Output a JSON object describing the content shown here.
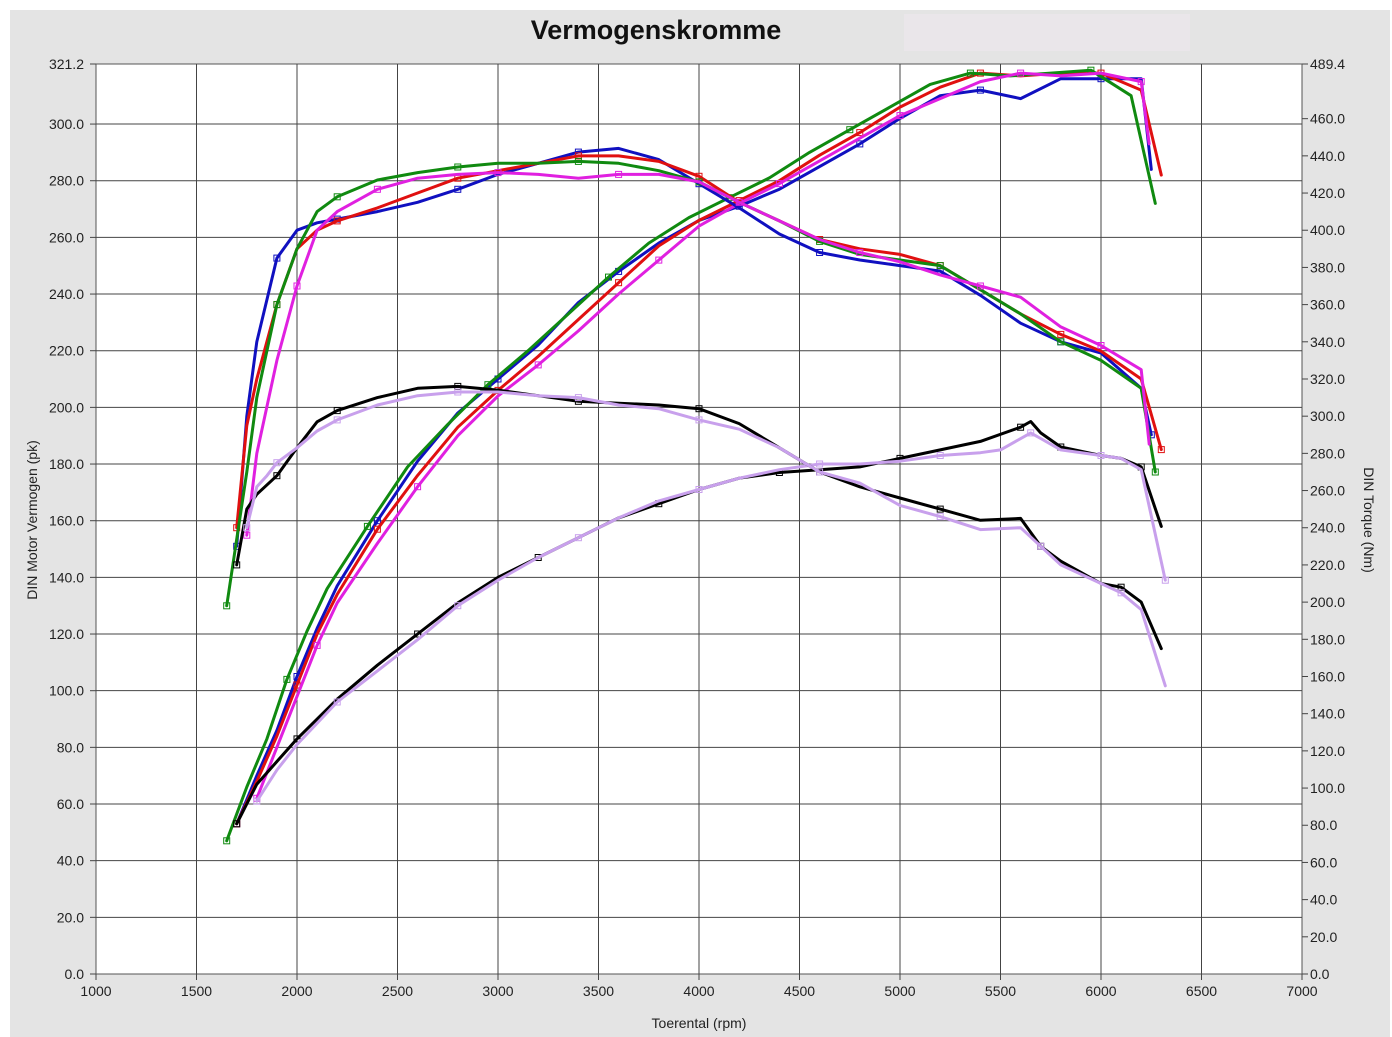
{
  "chart_data": {
    "type": "line",
    "title": "Vermogenskromme",
    "xlabel": "Toerental (rpm)",
    "ylabel": "DIN Motor Vermogen (pk)",
    "y2label": "DIN Torque (Nm)",
    "xlim": [
      1000,
      7000
    ],
    "ylim": [
      0,
      321.2
    ],
    "y2lim": [
      0,
      489.4
    ],
    "grid": true,
    "x_ticks": [
      "1000",
      "1500",
      "2000",
      "2500",
      "3000",
      "3500",
      "4000",
      "4500",
      "5000",
      "5500",
      "6000",
      "6500",
      "7000"
    ],
    "y_ticks": [
      "0.0",
      "20.0",
      "40.0",
      "60.0",
      "80.0",
      "100.0",
      "120.0",
      "140.0",
      "160.0",
      "180.0",
      "200.0",
      "220.0",
      "240.0",
      "260.0",
      "280.0",
      "300.0",
      "321.2"
    ],
    "y2_ticks": [
      "0.0",
      "20.0",
      "40.0",
      "60.0",
      "80.0",
      "100.0",
      "120.0",
      "140.0",
      "160.0",
      "180.0",
      "200.0",
      "220.0",
      "240.0",
      "260.0",
      "280.0",
      "300.0",
      "320.0",
      "340.0",
      "360.0",
      "380.0",
      "400.0",
      "420.0",
      "440.0",
      "460.0",
      "489.4"
    ],
    "series": [
      {
        "color": "#1010c0",
        "axis": "left",
        "quantity": "power",
        "x": [
          1700,
          1800,
          1900,
          2000,
          2100,
          2200,
          2400,
          2600,
          2800,
          3000,
          3200,
          3400,
          3600,
          3800,
          4000,
          4200,
          4400,
          4600,
          4800,
          5000,
          5200,
          5400,
          5600,
          5800,
          6000,
          6200,
          6250
        ],
        "y": [
          53,
          70,
          86,
          105,
          122,
          137,
          160,
          181,
          198,
          210,
          222,
          237,
          248,
          258,
          266,
          271,
          277,
          285,
          293,
          302,
          310,
          312,
          309,
          316,
          316,
          316,
          284
        ]
      },
      {
        "color": "#e01010",
        "axis": "left",
        "quantity": "power",
        "x": [
          1700,
          1800,
          1900,
          2000,
          2100,
          2200,
          2400,
          2600,
          2800,
          3000,
          3200,
          3400,
          3600,
          3800,
          4000,
          4200,
          4400,
          4600,
          4800,
          5000,
          5200,
          5400,
          5600,
          5800,
          6000,
          6200,
          6300
        ],
        "y": [
          53,
          68,
          84,
          102,
          120,
          134,
          157,
          176,
          193,
          206,
          218,
          231,
          244,
          257,
          266,
          273,
          280,
          289,
          297,
          306,
          313,
          318,
          317,
          318,
          318,
          312,
          282
        ]
      },
      {
        "color": "#108a10",
        "axis": "left",
        "quantity": "power",
        "x": [
          1650,
          1750,
          1850,
          1950,
          2050,
          2150,
          2350,
          2550,
          2750,
          2950,
          3150,
          3350,
          3550,
          3750,
          3950,
          4150,
          4350,
          4550,
          4750,
          4950,
          5150,
          5350,
          5550,
          5750,
          5950,
          6150,
          6270
        ],
        "y": [
          47,
          66,
          83,
          104,
          121,
          136,
          158,
          179,
          194,
          208,
          220,
          233,
          246,
          258,
          267,
          274,
          281,
          290,
          298,
          306,
          314,
          318,
          317,
          318,
          319,
          310,
          272
        ]
      },
      {
        "color": "#e020e0",
        "axis": "left",
        "quantity": "power",
        "x": [
          1800,
          1900,
          2000,
          2100,
          2200,
          2400,
          2600,
          2800,
          3000,
          3200,
          3400,
          3600,
          3800,
          4000,
          4200,
          4400,
          4600,
          4800,
          5000,
          5200,
          5400,
          5600,
          5800,
          6000,
          6200,
          6240
        ],
        "y": [
          62,
          80,
          98,
          116,
          131,
          152,
          172,
          190,
          204,
          215,
          227,
          240,
          252,
          264,
          272,
          279,
          287,
          295,
          303,
          309,
          315,
          318,
          317,
          318,
          315,
          293
        ]
      },
      {
        "color": "#1010c0",
        "axis": "right",
        "quantity": "torque",
        "x": [
          1700,
          1750,
          1800,
          1900,
          2000,
          2100,
          2200,
          2400,
          2600,
          2800,
          3000,
          3200,
          3400,
          3600,
          3800,
          4000,
          4200,
          4400,
          4600,
          4800,
          5000,
          5200,
          5400,
          5600,
          5800,
          6000,
          6200,
          6250
        ],
        "y": [
          230,
          300,
          340,
          385,
          400,
          404,
          406,
          410,
          415,
          422,
          430,
          436,
          442,
          444,
          438,
          425,
          412,
          398,
          388,
          384,
          381,
          378,
          365,
          350,
          340,
          334,
          315,
          290
        ]
      },
      {
        "color": "#e01010",
        "axis": "right",
        "quantity": "torque",
        "x": [
          1700,
          1750,
          1800,
          1900,
          2000,
          2100,
          2200,
          2400,
          2600,
          2800,
          3000,
          3200,
          3400,
          3600,
          3800,
          4000,
          4200,
          4400,
          4600,
          4800,
          5000,
          5200,
          5400,
          5600,
          5800,
          6000,
          6200,
          6300
        ],
        "y": [
          240,
          295,
          320,
          360,
          390,
          400,
          405,
          412,
          420,
          428,
          432,
          436,
          440,
          440,
          437,
          429,
          415,
          405,
          395,
          390,
          387,
          381,
          368,
          355,
          344,
          335,
          320,
          282
        ]
      },
      {
        "color": "#108a10",
        "axis": "right",
        "quantity": "torque",
        "x": [
          1650,
          1750,
          1800,
          1900,
          2000,
          2100,
          2200,
          2400,
          2600,
          2800,
          3000,
          3200,
          3400,
          3600,
          3800,
          4000,
          4200,
          4400,
          4600,
          4800,
          5000,
          5200,
          5400,
          5600,
          5800,
          6000,
          6200,
          6270
        ],
        "y": [
          198,
          270,
          310,
          360,
          390,
          410,
          418,
          427,
          431,
          434,
          436,
          436,
          437,
          436,
          432,
          426,
          415,
          405,
          394,
          387,
          384,
          381,
          368,
          355,
          340,
          330,
          315,
          270
        ]
      },
      {
        "color": "#e020e0",
        "axis": "right",
        "quantity": "torque",
        "x": [
          1750,
          1800,
          1900,
          2000,
          2100,
          2200,
          2400,
          2600,
          2800,
          3000,
          3200,
          3400,
          3600,
          3800,
          4000,
          4200,
          4400,
          4600,
          4800,
          5000,
          5200,
          5400,
          5600,
          5800,
          6000,
          6200,
          6240
        ],
        "y": [
          236,
          280,
          330,
          370,
          400,
          410,
          422,
          428,
          430,
          431,
          430,
          428,
          430,
          430,
          426,
          415,
          405,
          395,
          388,
          383,
          376,
          370,
          364,
          348,
          338,
          325,
          285
        ]
      },
      {
        "color": "#000000",
        "axis": "left",
        "quantity": "power",
        "x": [
          1700,
          1800,
          1900,
          2000,
          2200,
          2400,
          2600,
          2800,
          3000,
          3200,
          3400,
          3600,
          3800,
          4000,
          4200,
          4400,
          4600,
          4800,
          5000,
          5200,
          5400,
          5600,
          5650,
          5700,
          5800,
          6000,
          6100,
          6200,
          6300
        ],
        "y": [
          53,
          67,
          75,
          83,
          97,
          109,
          120,
          131,
          140,
          147,
          154,
          161,
          166,
          171,
          175,
          177,
          178,
          179,
          182,
          185,
          188,
          193,
          195,
          191,
          186,
          183,
          182,
          179,
          158
        ]
      },
      {
        "color": "#c8a0ec",
        "axis": "left",
        "quantity": "power",
        "x": [
          1800,
          1900,
          2000,
          2200,
          2400,
          2600,
          2800,
          3000,
          3200,
          3400,
          3600,
          3800,
          4000,
          4200,
          4400,
          4600,
          4800,
          5000,
          5200,
          5400,
          5500,
          5650,
          5700,
          5800,
          6000,
          6100,
          6200,
          6320
        ],
        "y": [
          61,
          72,
          81,
          96,
          107,
          118,
          130,
          139,
          147,
          154,
          161,
          167,
          171,
          175,
          178,
          180,
          180,
          181,
          183,
          184,
          185,
          191,
          189,
          185,
          183,
          182,
          178,
          139
        ]
      },
      {
        "color": "#000000",
        "axis": "right",
        "quantity": "torque",
        "x": [
          1700,
          1750,
          1800,
          1900,
          2000,
          2100,
          2200,
          2400,
          2600,
          2800,
          3000,
          3200,
          3400,
          3600,
          3800,
          4000,
          4200,
          4400,
          4600,
          4800,
          5000,
          5200,
          5400,
          5600,
          5700,
          5800,
          6000,
          6100,
          6200,
          6300
        ],
        "y": [
          220,
          250,
          258,
          268,
          283,
          297,
          303,
          310,
          315,
          316,
          314,
          311,
          308,
          307,
          306,
          304,
          296,
          283,
          270,
          262,
          256,
          250,
          244,
          245,
          230,
          222,
          210,
          208,
          200,
          175
        ]
      },
      {
        "color": "#c8a0ec",
        "axis": "right",
        "quantity": "torque",
        "x": [
          1750,
          1800,
          1850,
          1900,
          2000,
          2100,
          2200,
          2400,
          2600,
          2800,
          3000,
          3200,
          3400,
          3600,
          3800,
          4000,
          4200,
          4400,
          4600,
          4800,
          5000,
          5200,
          5400,
          5600,
          5700,
          5800,
          6000,
          6100,
          6200,
          6320
        ],
        "y": [
          240,
          262,
          268,
          275,
          283,
          292,
          298,
          306,
          311,
          313,
          313,
          311,
          310,
          306,
          304,
          298,
          293,
          283,
          270,
          264,
          252,
          246,
          239,
          240,
          230,
          220,
          210,
          205,
          196,
          155
        ]
      }
    ]
  }
}
